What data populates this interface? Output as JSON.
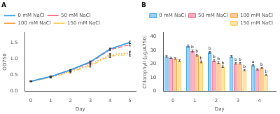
{
  "chart_data": [
    {
      "type": "line",
      "title": "A",
      "x": [
        0,
        1,
        2,
        3,
        4,
        5
      ],
      "series": [
        {
          "name": "0 mM NaCl",
          "values": [
            0.3,
            0.45,
            0.65,
            0.9,
            1.3,
            1.5
          ],
          "err": [
            0.01,
            0.02,
            0.02,
            0.03,
            0.03,
            0.04
          ],
          "line_style": "solid"
        },
        {
          "name": "50 mM NaCl",
          "values": [
            0.3,
            0.44,
            0.64,
            0.88,
            1.28,
            1.43
          ],
          "err": [
            0.01,
            0.02,
            0.02,
            0.03,
            0.03,
            0.04
          ],
          "line_style": "dashed"
        },
        {
          "name": "100 mM NaCl",
          "values": [
            0.3,
            0.43,
            0.61,
            0.82,
            1.12,
            1.18
          ],
          "err": [
            0.01,
            0.02,
            0.02,
            0.04,
            0.04,
            0.05
          ],
          "line_style": "dotted"
        },
        {
          "name": "150 mM NaCl",
          "values": [
            0.3,
            0.42,
            0.58,
            0.78,
            1.08,
            1.13
          ],
          "err": [
            0.01,
            0.02,
            0.02,
            0.04,
            0.05,
            0.05
          ],
          "line_style": "dashdot"
        }
      ],
      "xlabel": "Day",
      "ylabel": "OD750",
      "xlim": [
        -0.3,
        5.3
      ],
      "xticks": [
        0,
        1,
        2,
        3,
        4,
        5
      ],
      "ylim": [
        0,
        1.8
      ],
      "yticks": [
        {
          "value": 0,
          "label": "0.0"
        },
        0.5,
        {
          "value": 1,
          "label": "1.0"
        },
        1.5
      ],
      "grid": false,
      "legend": "upper left"
    },
    {
      "type": "bar",
      "title": "B",
      "x": [
        0,
        1,
        2,
        3,
        4
      ],
      "series": [
        {
          "name": "0 mM NaCl",
          "values": [
            25.5,
            33.2,
            28.5,
            25.5,
            19.0
          ],
          "err": [
            0.5,
            0.8,
            0.7,
            0.6,
            0.5
          ]
        },
        {
          "name": "50 mM NaCl",
          "values": [
            24.5,
            29.5,
            22.5,
            20.5,
            16.0
          ],
          "err": [
            0.5,
            0.8,
            0.7,
            0.6,
            0.5
          ]
        },
        {
          "name": "100 mM NaCl",
          "values": [
            24.0,
            26.5,
            21.0,
            20.5,
            17.0
          ],
          "err": [
            0.5,
            0.7,
            0.6,
            0.6,
            0.5
          ]
        },
        {
          "name": "150 mM NaCl",
          "values": [
            22.5,
            21.5,
            18.0,
            15.5,
            12.0
          ],
          "err": [
            0.5,
            0.7,
            0.6,
            0.5,
            0.4
          ]
        }
      ],
      "annotations": [
        {
          "text": "b",
          "x": 1,
          "series": "50 mM NaCl"
        },
        {
          "text": "b",
          "x": 1,
          "series": "100 mM NaCl"
        },
        {
          "text": "b",
          "x": 1,
          "series": "150 mM NaCl"
        },
        {
          "text": "b",
          "x": 2,
          "series": "0 mM NaCl"
        },
        {
          "text": "b",
          "x": 2,
          "series": "50 mM NaCl"
        },
        {
          "text": "b",
          "x": 2,
          "series": "100 mM NaCl"
        },
        {
          "text": "b",
          "x": 2,
          "series": "150 mM NaCl"
        },
        {
          "text": "b",
          "x": 3,
          "series": "50 mM NaCl"
        },
        {
          "text": "b",
          "x": 3,
          "series": "100 mM NaCl"
        },
        {
          "text": "b",
          "x": 3,
          "series": "150 mM NaCl"
        },
        {
          "text": "a",
          "x": 4,
          "series": "0 mM NaCl"
        },
        {
          "text": "b",
          "x": 4,
          "series": "100 mM NaCl"
        },
        {
          "text": "b",
          "x": 4,
          "series": "150 mM NaCl"
        }
      ],
      "xlabel": "Day",
      "ylabel": "Chlorophyll (μg/A750)",
      "xlim": [
        -0.45,
        4.75
      ],
      "xticks": [
        0,
        1,
        2,
        3,
        4
      ],
      "ylim": [
        0,
        43
      ],
      "yticks": [
        0,
        10,
        20,
        30,
        40
      ],
      "grid": false,
      "legend": "upper right"
    }
  ]
}
